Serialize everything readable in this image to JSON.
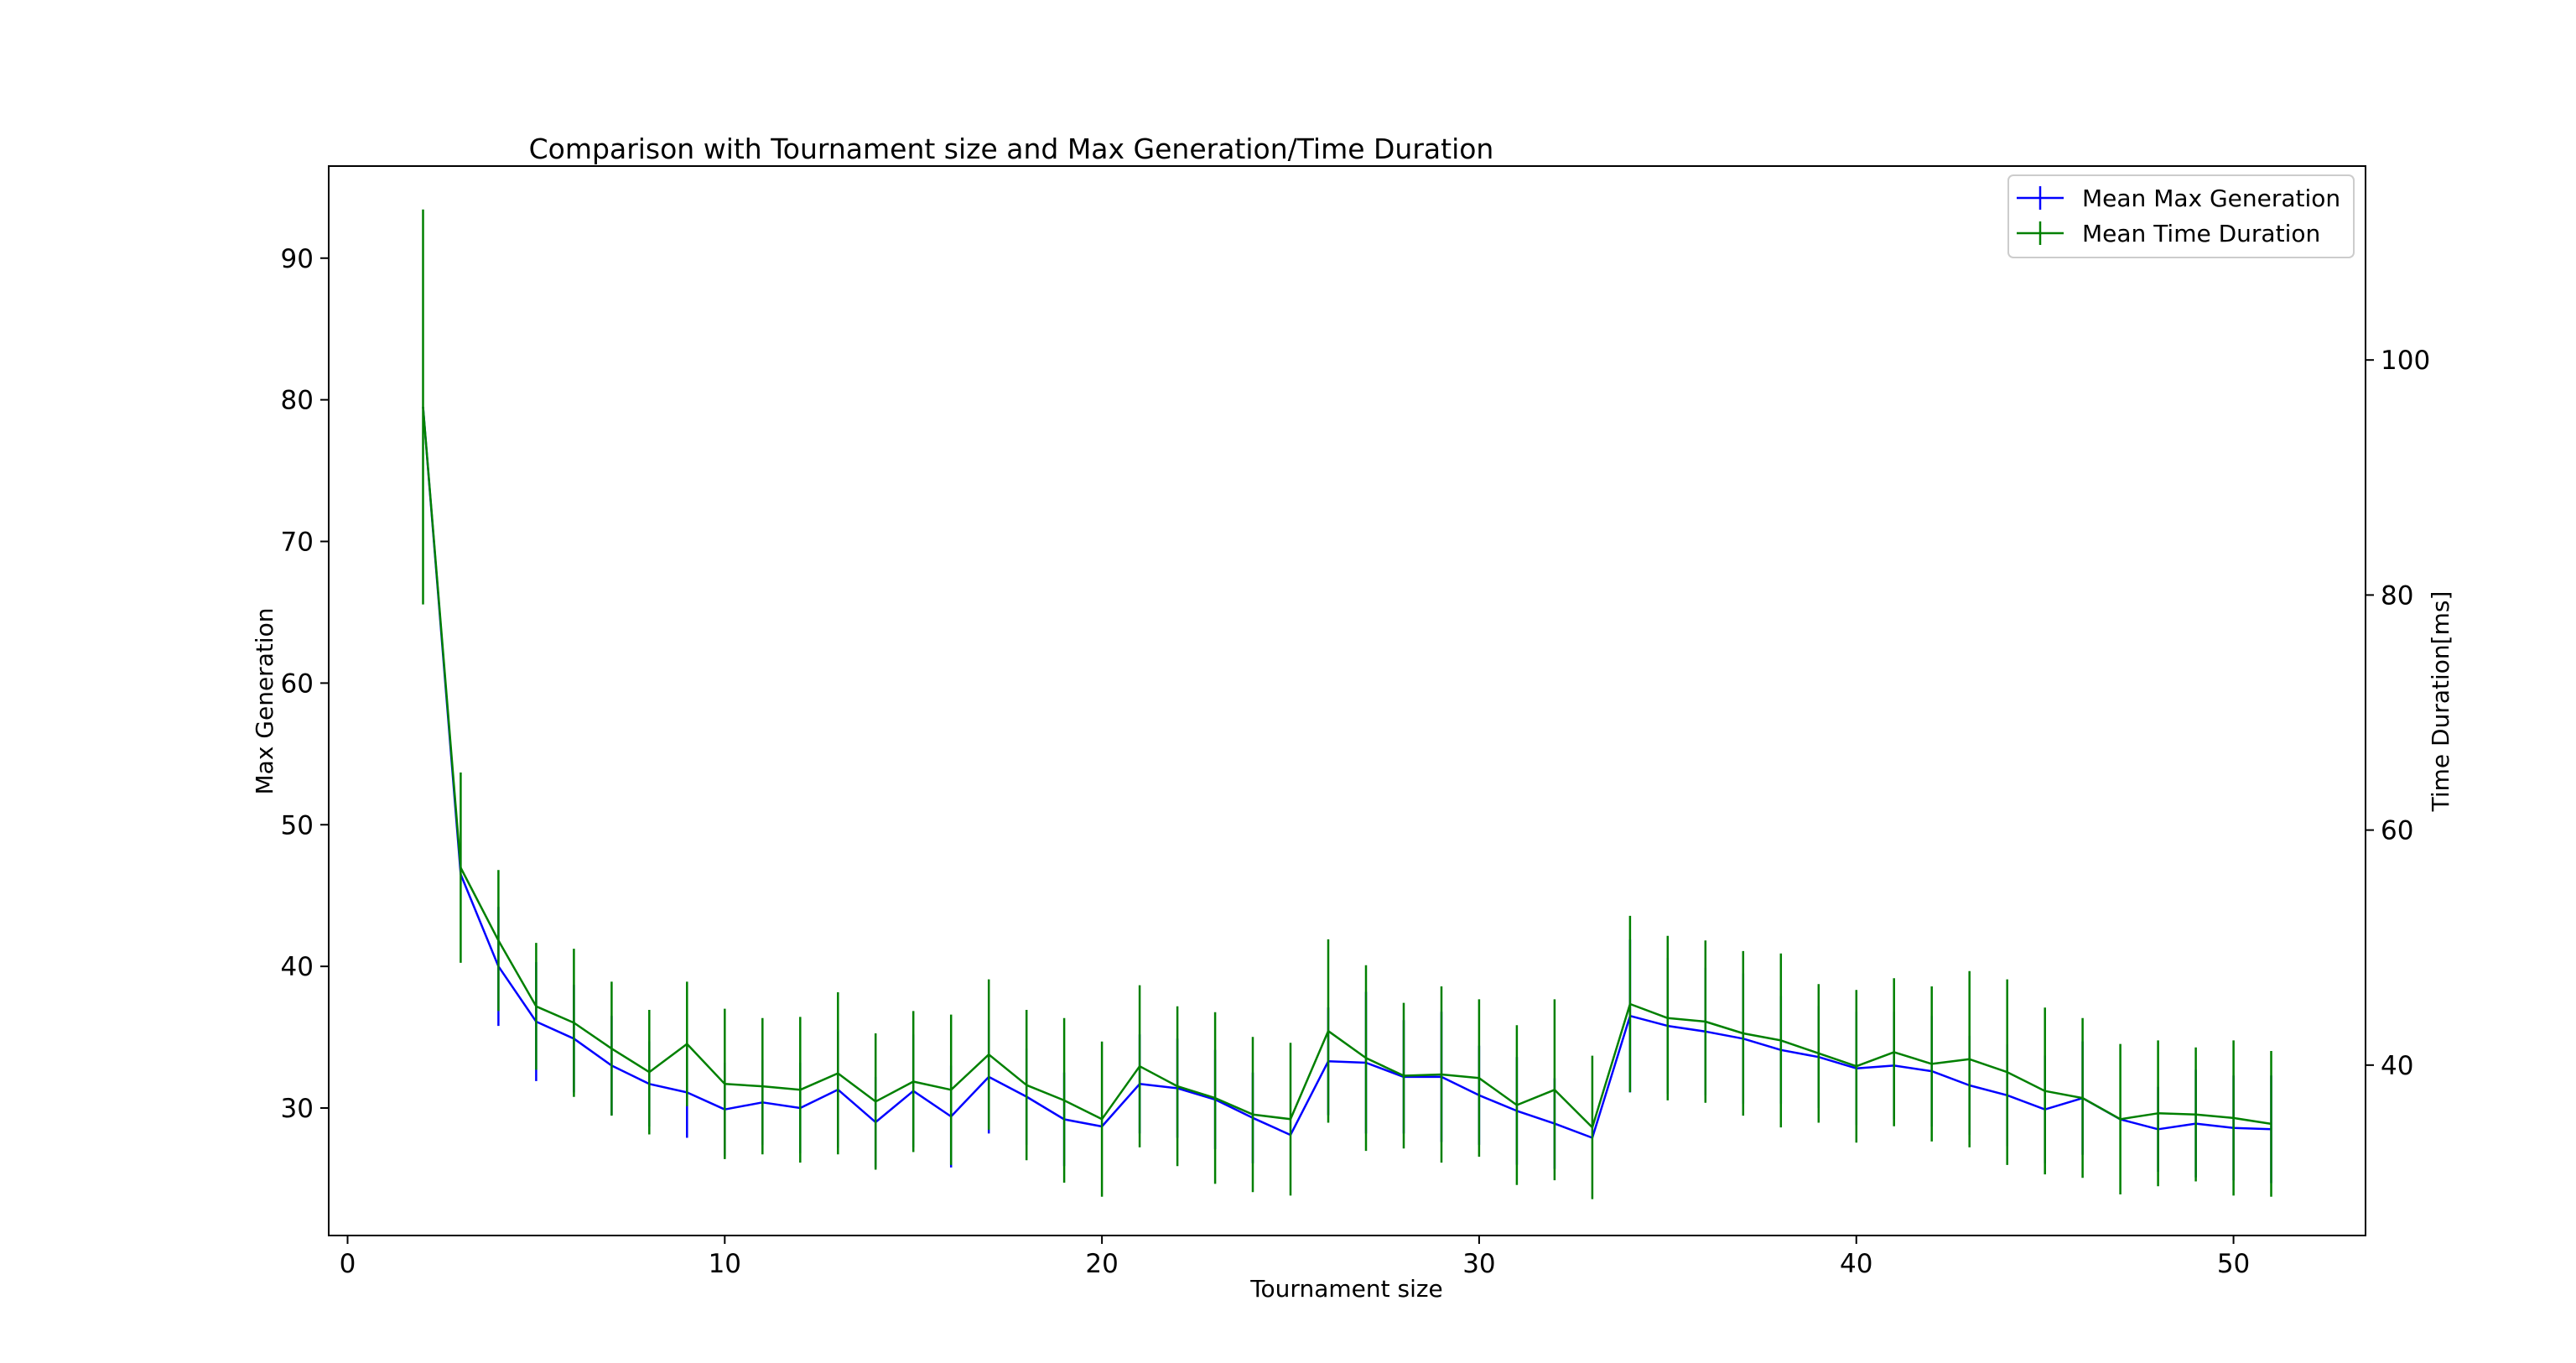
{
  "chart_data": {
    "type": "line",
    "title": "Comparison with Tournament size and Max Generation/Time Duration",
    "xlabel": "Tournament size",
    "ylabel": "Max Generation",
    "ylabel_right": "Time Duration[ms]",
    "xlim": [
      -0.5,
      53.5
    ],
    "ylim": [
      21,
      96.5
    ],
    "ylim_right": [
      25.5,
      116.5
    ],
    "x_ticks": [
      "0",
      "10",
      "20",
      "30",
      "40",
      "50"
    ],
    "y_ticks": [
      "30",
      "40",
      "50",
      "60",
      "70",
      "80",
      "90"
    ],
    "y_ticks_right": [
      "40",
      "60",
      "80",
      "100"
    ],
    "grid": false,
    "legend_position": "top-right",
    "x": [
      2,
      3,
      4,
      5,
      6,
      7,
      8,
      9,
      10,
      11,
      12,
      13,
      14,
      15,
      16,
      17,
      18,
      19,
      20,
      21,
      22,
      23,
      24,
      25,
      26,
      27,
      28,
      29,
      30,
      31,
      32,
      33,
      34,
      35,
      36,
      37,
      38,
      39,
      40,
      41,
      42,
      43,
      44,
      45,
      46,
      47,
      48,
      49,
      50,
      51
    ],
    "series": [
      {
        "name": "Mean Max Generation",
        "axis": "left",
        "color": "#0000ff",
        "values": [
          79.5,
          46.5,
          40.0,
          36.1,
          34.9,
          33.0,
          31.7,
          31.1,
          29.9,
          30.4,
          30.0,
          31.3,
          29.0,
          31.2,
          29.4,
          32.2,
          30.8,
          29.2,
          28.7,
          31.7,
          31.4,
          30.6,
          29.3,
          28.1,
          33.3,
          33.2,
          32.2,
          32.2,
          30.9,
          29.8,
          28.9,
          27.9,
          36.5,
          35.8,
          35.4,
          34.9,
          34.1,
          33.6,
          32.8,
          33.0,
          32.6,
          31.6,
          30.9,
          29.9,
          30.7,
          29.2,
          28.5,
          28.9,
          28.6,
          28.5
        ],
        "error": [
          0.0,
          0.0,
          4.2,
          4.2,
          3.8,
          3.5,
          3.0,
          3.2,
          3.3,
          3.0,
          3.2,
          4.1,
          3.2,
          4.0,
          3.6,
          4.0,
          3.4,
          3.3,
          0.0,
          3.5,
          3.5,
          3.5,
          3.2,
          0.0,
          3.8,
          5.0,
          4.0,
          4.6,
          3.5,
          3.8,
          3.2,
          0.0,
          5.4,
          4.8,
          4.5,
          4.6,
          3.8,
          3.6,
          4.0,
          3.8,
          3.9,
          3.5,
          3.6,
          3.8,
          4.0,
          0.0,
          3.0,
          3.8,
          3.7,
          3.8
        ]
      },
      {
        "name": "Mean Time Duration",
        "axis": "right",
        "color": "#008000",
        "values": [
          96.0,
          56.8,
          50.6,
          45.0,
          43.6,
          41.4,
          39.4,
          41.8,
          38.4,
          38.2,
          37.9,
          39.3,
          36.9,
          38.6,
          37.9,
          40.9,
          38.3,
          37.0,
          35.4,
          39.9,
          38.2,
          37.2,
          35.8,
          35.4,
          42.9,
          40.6,
          39.1,
          39.2,
          38.9,
          36.6,
          37.9,
          34.7,
          45.2,
          44.0,
          43.7,
          42.7,
          42.1,
          41.0,
          39.9,
          41.1,
          40.1,
          40.5,
          39.4,
          37.8,
          37.2,
          35.4,
          35.9,
          35.8,
          35.5,
          35.0
        ],
        "error": [
          16.8,
          8.1,
          6.0,
          5.4,
          6.3,
          5.7,
          5.3,
          5.3,
          6.4,
          5.8,
          6.2,
          6.9,
          5.8,
          6.0,
          6.4,
          6.4,
          6.4,
          7.0,
          6.6,
          6.9,
          6.8,
          7.3,
          6.6,
          6.5,
          7.8,
          7.9,
          6.2,
          7.5,
          6.7,
          6.8,
          7.7,
          6.1,
          7.5,
          7.0,
          6.9,
          7.0,
          7.4,
          5.9,
          6.5,
          6.3,
          6.6,
          7.5,
          7.9,
          7.1,
          6.8,
          6.4,
          6.2,
          5.7,
          6.6,
          6.2
        ]
      }
    ]
  }
}
